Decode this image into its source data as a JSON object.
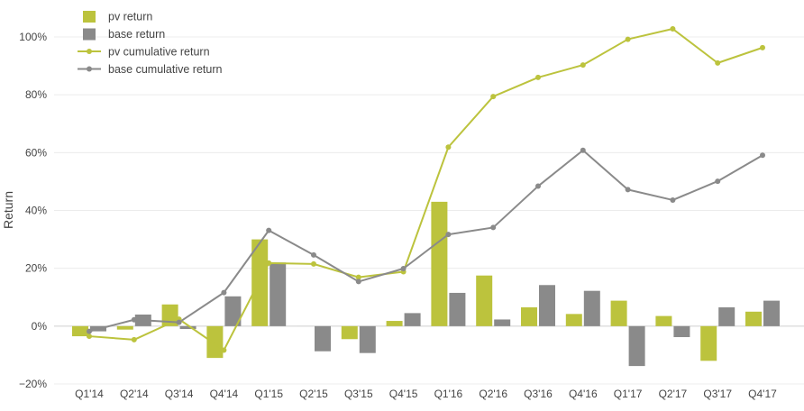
{
  "chart_data": {
    "type": "bar",
    "title": "",
    "xlabel": "",
    "ylabel": "Return",
    "ylim": [
      -20,
      105
    ],
    "yticks": [
      -20,
      0,
      20,
      40,
      60,
      80,
      100
    ],
    "ytick_labels": [
      "−20%",
      "0%",
      "20%",
      "40%",
      "60%",
      "80%",
      "100%"
    ],
    "grid": true,
    "legend_position": "top-left",
    "categories": [
      "Q1'14",
      "Q2'14",
      "Q3'14",
      "Q4'14",
      "Q1'15",
      "Q2'15",
      "Q3'15",
      "Q4'15",
      "Q1'16",
      "Q2'16",
      "Q3'16",
      "Q4'16",
      "Q1'17",
      "Q2'17",
      "Q3'17",
      "Q4'17"
    ],
    "series": [
      {
        "name": "pv return",
        "kind": "bar",
        "color": "#bcc33d",
        "values": [
          -3.5,
          -1.2,
          7.5,
          -11.0,
          30.0,
          0.0,
          -4.5,
          1.8,
          43.0,
          17.5,
          6.5,
          4.2,
          8.8,
          3.5,
          -12.0,
          5.0
        ]
      },
      {
        "name": "base return",
        "kind": "bar",
        "color": "#8a8a8a",
        "values": [
          -1.8,
          4.0,
          -1.0,
          10.3,
          22.0,
          -8.7,
          -9.3,
          4.5,
          11.5,
          2.3,
          14.2,
          12.2,
          -13.8,
          -3.8,
          6.5,
          8.8
        ]
      },
      {
        "name": "pv cumulative return",
        "kind": "line",
        "color": "#bcc33d",
        "values": [
          -3.5,
          -4.7,
          2.4,
          -8.3,
          21.8,
          21.5,
          16.9,
          18.8,
          61.9,
          79.4,
          86.0,
          90.3,
          99.2,
          102.8,
          91.0,
          96.3
        ]
      },
      {
        "name": "base cumulative return",
        "kind": "line",
        "color": "#8a8a8a",
        "values": [
          -1.8,
          2.2,
          1.3,
          11.6,
          33.1,
          24.6,
          15.4,
          19.9,
          31.7,
          34.1,
          48.4,
          60.8,
          47.2,
          43.6,
          50.1,
          59.1
        ]
      }
    ]
  }
}
